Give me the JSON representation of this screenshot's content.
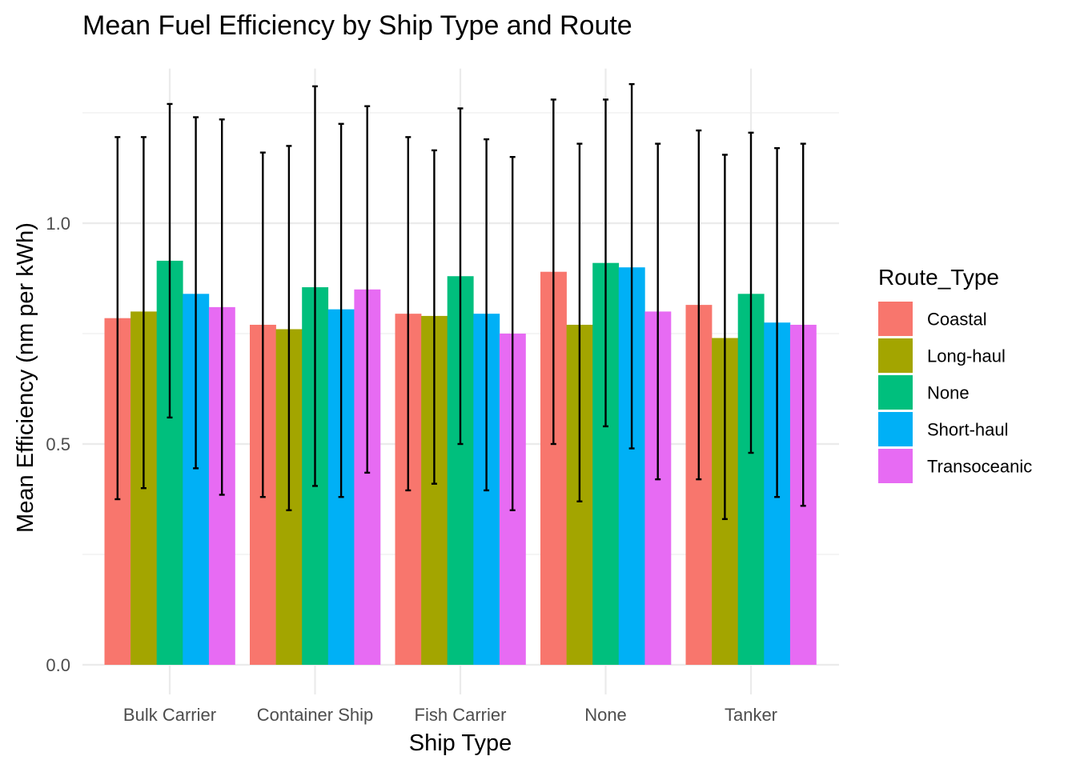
{
  "chart_data": {
    "type": "bar",
    "title": "Mean Fuel Efficiency by Ship Type and Route",
    "xlabel": "Ship Type",
    "ylabel": "Mean Efficiency (nm per kWh)",
    "categories": [
      "Bulk Carrier",
      "Container Ship",
      "Fish Carrier",
      "None",
      "Tanker"
    ],
    "ylim": [
      0,
      1.35
    ],
    "yticks": [
      {
        "value": 0.0,
        "label": "0.0"
      },
      {
        "value": 0.5,
        "label": "0.5"
      },
      {
        "value": 1.0,
        "label": "1.0"
      }
    ],
    "minor_gridlines": [
      0.25,
      0.75,
      1.25
    ],
    "grid": true,
    "error_bars": true,
    "legend": {
      "title": "Route_Type",
      "position": "right"
    },
    "series": [
      {
        "name": "Coastal",
        "color": "#F8766D",
        "values": [
          0.785,
          0.77,
          0.795,
          0.89,
          0.815
        ],
        "err_low": [
          0.375,
          0.38,
          0.395,
          0.5,
          0.42
        ],
        "err_high": [
          1.195,
          1.16,
          1.195,
          1.28,
          1.21
        ]
      },
      {
        "name": "Long-haul",
        "color": "#A3A500",
        "values": [
          0.8,
          0.76,
          0.79,
          0.77,
          0.74
        ],
        "err_low": [
          0.4,
          0.35,
          0.41,
          0.37,
          0.33
        ],
        "err_high": [
          1.195,
          1.175,
          1.165,
          1.18,
          1.155
        ]
      },
      {
        "name": "None",
        "color": "#00BF7D",
        "values": [
          0.915,
          0.855,
          0.88,
          0.91,
          0.84
        ],
        "err_low": [
          0.56,
          0.405,
          0.5,
          0.54,
          0.48
        ],
        "err_high": [
          1.27,
          1.31,
          1.26,
          1.28,
          1.205
        ]
      },
      {
        "name": "Short-haul",
        "color": "#00B0F6",
        "values": [
          0.84,
          0.805,
          0.795,
          0.9,
          0.775
        ],
        "err_low": [
          0.445,
          0.38,
          0.395,
          0.49,
          0.38
        ],
        "err_high": [
          1.24,
          1.225,
          1.19,
          1.315,
          1.17
        ]
      },
      {
        "name": "Transoceanic",
        "color": "#E76BF3",
        "values": [
          0.81,
          0.85,
          0.75,
          0.8,
          0.77
        ],
        "err_low": [
          0.385,
          0.435,
          0.35,
          0.42,
          0.36
        ],
        "err_high": [
          1.235,
          1.265,
          1.15,
          1.18,
          1.18
        ]
      }
    ]
  }
}
